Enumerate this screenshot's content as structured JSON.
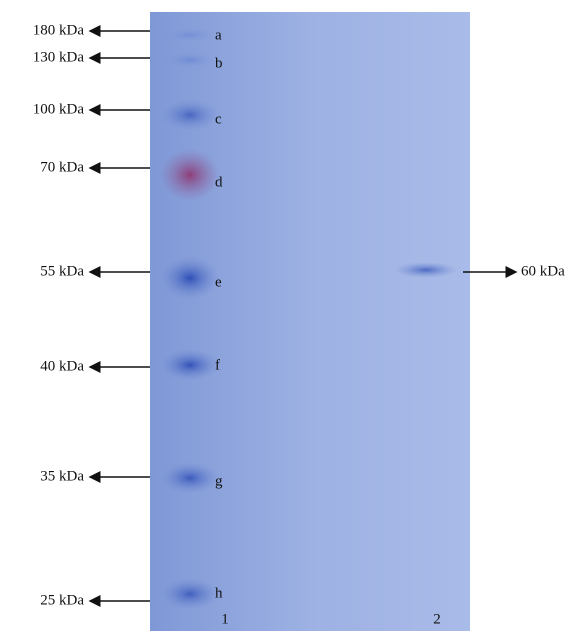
{
  "markers": [
    {
      "label": "180 kDa",
      "letter": "a"
    },
    {
      "label": "130 kDa",
      "letter": "b"
    },
    {
      "label": "100 kDa",
      "letter": "c"
    },
    {
      "label": "70 kDa",
      "letter": "d"
    },
    {
      "label": "55 kDa",
      "letter": "e"
    },
    {
      "label": "40 kDa",
      "letter": "f"
    },
    {
      "label": "35 kDa",
      "letter": "g"
    },
    {
      "label": "25 kDa",
      "letter": "h"
    }
  ],
  "sample": {
    "label": "60 kDa"
  },
  "lanes": [
    "1",
    "2"
  ]
}
